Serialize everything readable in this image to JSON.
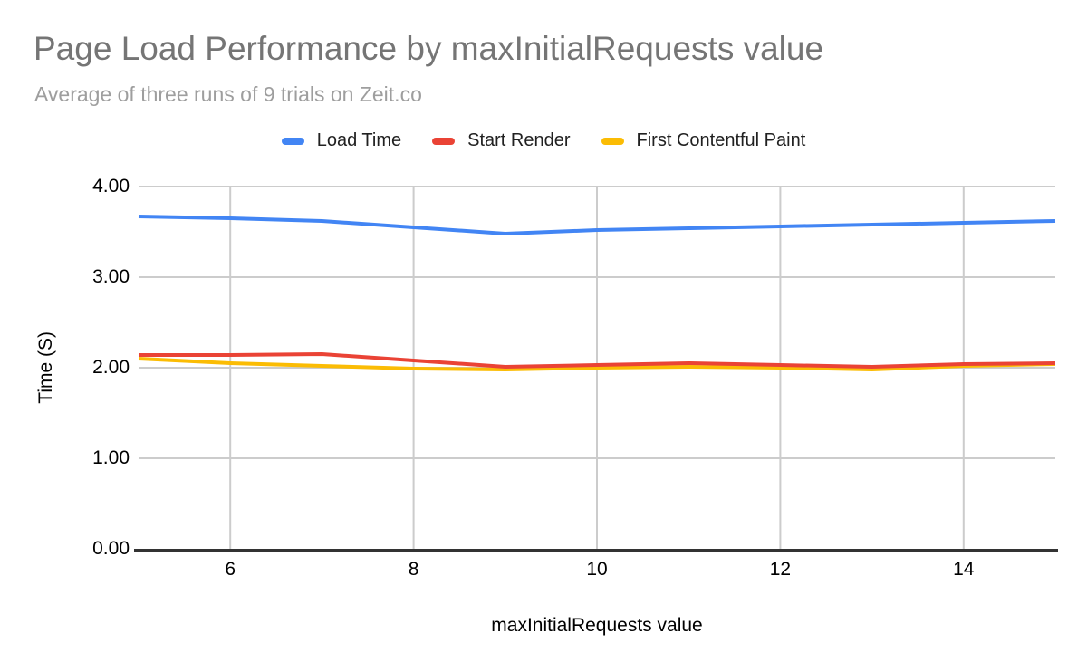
{
  "colors": {
    "title": "#757575",
    "subtitle": "#9e9e9e",
    "legend_text": "#212121",
    "tick_text": "#000000"
  },
  "chart_data": {
    "type": "line",
    "title": "Page Load Performance by maxInitialRequests value",
    "subtitle": "Average of three runs of 9 trials on Zeit.co",
    "xlabel": "maxInitialRequests value",
    "ylabel": "Time (S)",
    "legend_position": "top",
    "grid": true,
    "grid_color": "#cccccc",
    "baseline_color": "#333333",
    "xlim": [
      5,
      15
    ],
    "ylim": [
      0,
      4
    ],
    "x": [
      5,
      6,
      7,
      8,
      9,
      10,
      11,
      12,
      13,
      14,
      15
    ],
    "x_ticks": [
      {
        "value": 6,
        "label": "6"
      },
      {
        "value": 8,
        "label": "8"
      },
      {
        "value": 10,
        "label": "10"
      },
      {
        "value": 12,
        "label": "12"
      },
      {
        "value": 14,
        "label": "14"
      }
    ],
    "y_ticks": [
      {
        "value": 0,
        "label": "0.00"
      },
      {
        "value": 1,
        "label": "1.00"
      },
      {
        "value": 2,
        "label": "2.00"
      },
      {
        "value": 3,
        "label": "3.00"
      },
      {
        "value": 4,
        "label": "4.00"
      }
    ],
    "series": [
      {
        "name": "Load Time",
        "color": "#4285F4",
        "values": [
          3.67,
          3.65,
          3.62,
          3.55,
          3.48,
          3.52,
          3.54,
          3.56,
          3.58,
          3.6,
          3.62
        ]
      },
      {
        "name": "Start Render",
        "color": "#EA4335",
        "values": [
          2.14,
          2.14,
          2.15,
          2.08,
          2.01,
          2.03,
          2.05,
          2.03,
          2.01,
          2.04,
          2.05
        ]
      },
      {
        "name": "First Contentful Paint",
        "color": "#FBBC04",
        "values": [
          2.1,
          2.05,
          2.02,
          1.99,
          1.98,
          2.0,
          2.01,
          2.0,
          1.98,
          2.02,
          2.04
        ]
      }
    ]
  }
}
